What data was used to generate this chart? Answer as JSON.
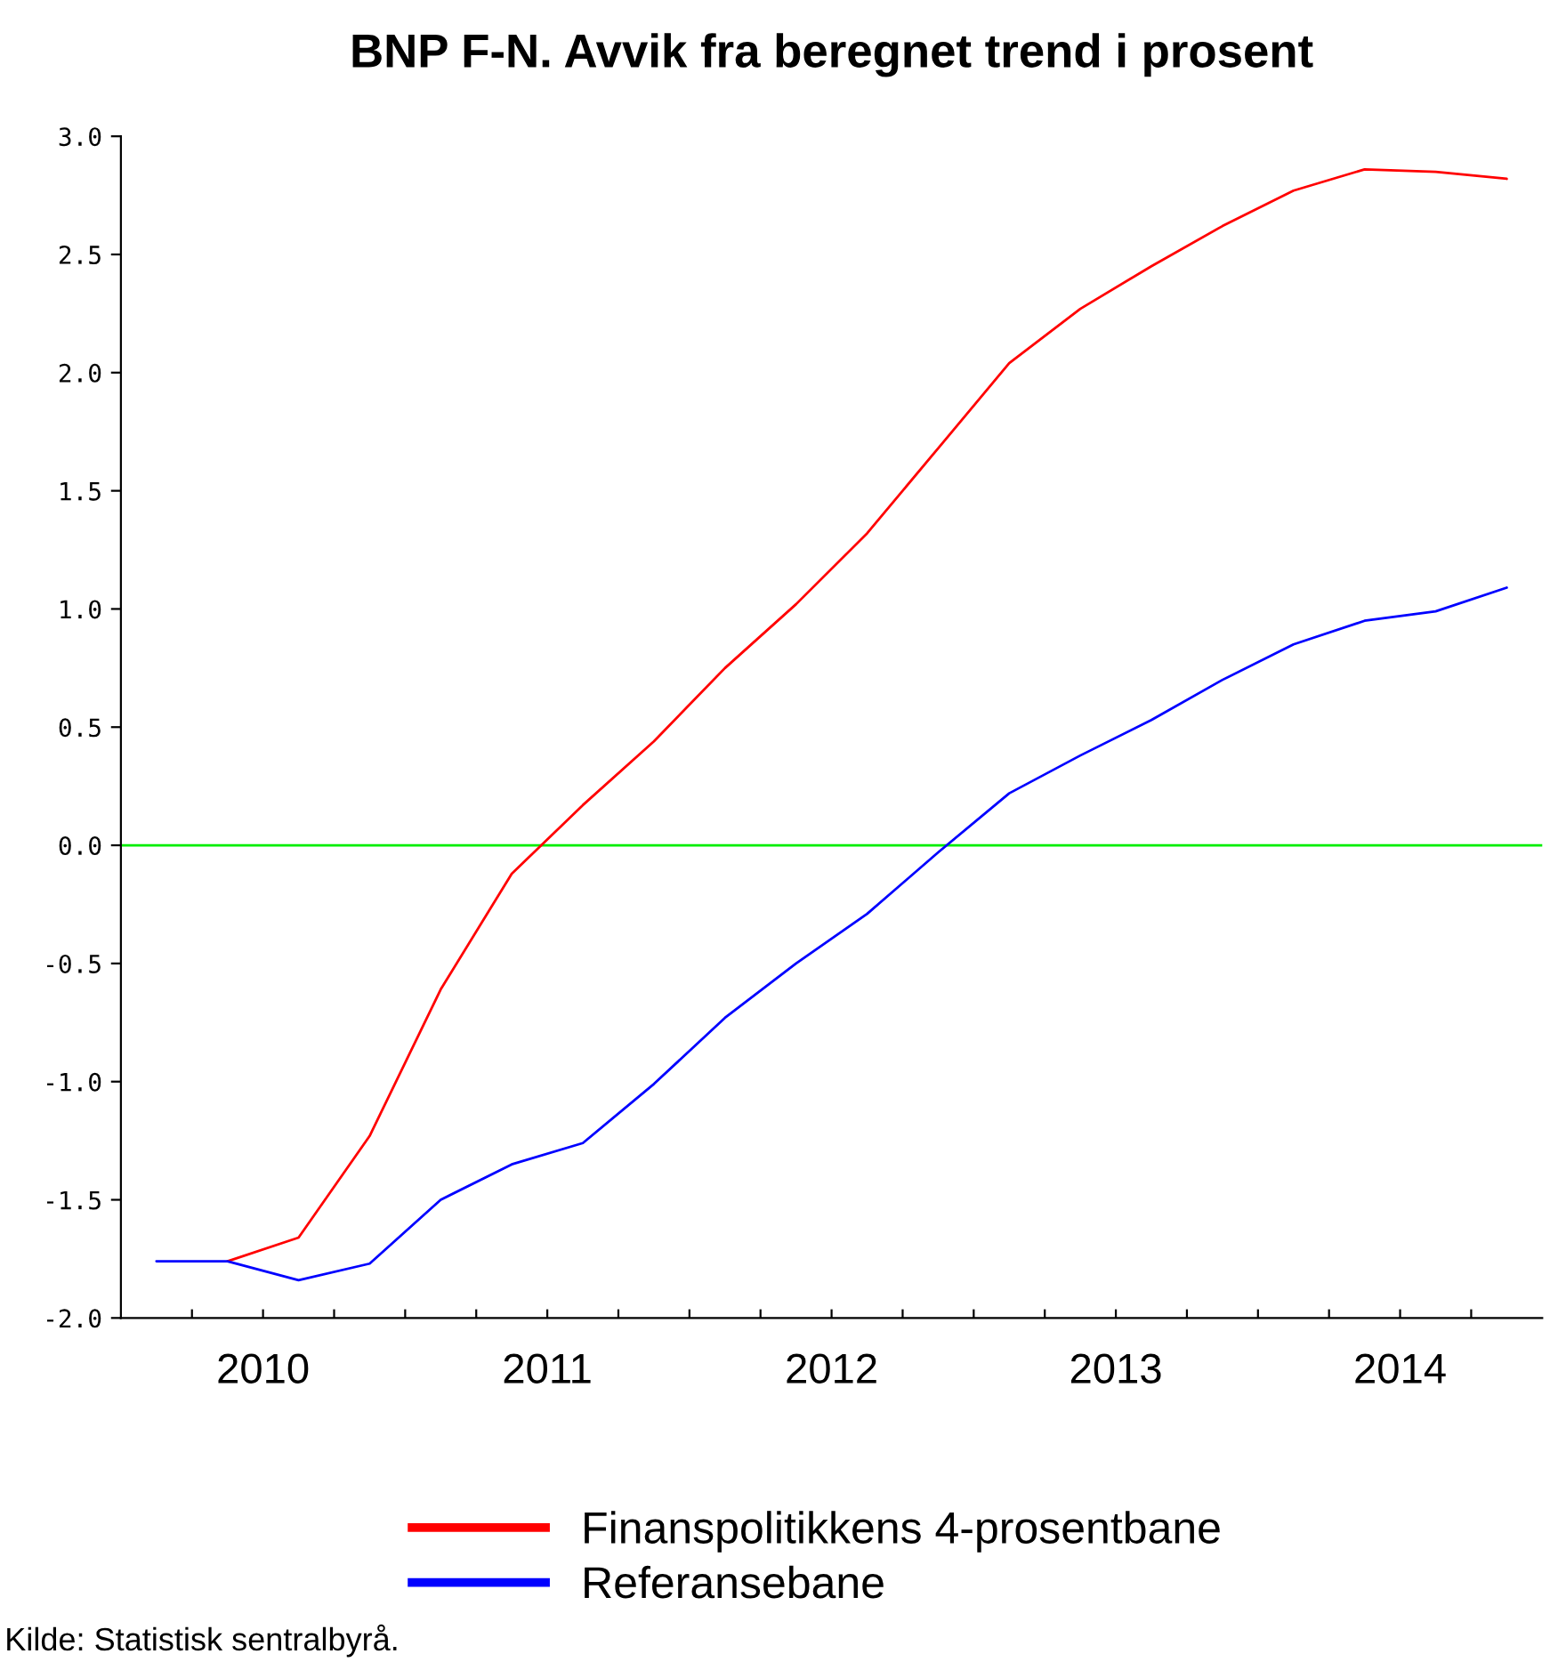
{
  "chart_data": {
    "type": "line",
    "title": "BNP F-N. Avvik fra beregnet trend i prosent",
    "x": [
      2010.125,
      2010.375,
      2010.625,
      2010.875,
      2011.125,
      2011.375,
      2011.625,
      2011.875,
      2012.125,
      2012.375,
      2012.625,
      2012.875,
      2013.125,
      2013.375,
      2013.625,
      2013.875,
      2014.125,
      2014.375,
      2014.625,
      2014.875
    ],
    "series": [
      {
        "name": "Finanspolitikkens 4-prosentbane",
        "color": "#ff0000",
        "values": [
          null,
          -1.76,
          -1.66,
          -1.23,
          -0.61,
          -0.12,
          0.17,
          0.44,
          0.75,
          1.02,
          1.32,
          1.68,
          2.04,
          2.27,
          2.45,
          2.62,
          2.77,
          2.86,
          2.85,
          2.82
        ]
      },
      {
        "name": "Referansebane",
        "color": "#0000ff",
        "values": [
          -1.76,
          -1.76,
          -1.84,
          -1.77,
          -1.5,
          -1.35,
          -1.26,
          -1.01,
          -0.73,
          -0.5,
          -0.29,
          -0.03,
          0.22,
          0.38,
          0.53,
          0.7,
          0.85,
          0.95,
          0.99,
          1.09
        ]
      }
    ],
    "xlim": [
      2010,
      2015
    ],
    "xticks": [
      {
        "value": 2010.25,
        "label": null
      },
      {
        "value": 2010.5,
        "label": "2010"
      },
      {
        "value": 2010.75,
        "label": null
      },
      {
        "value": 2011,
        "label": null
      },
      {
        "value": 2011.25,
        "label": null
      },
      {
        "value": 2011.5,
        "label": "2011"
      },
      {
        "value": 2011.75,
        "label": null
      },
      {
        "value": 2012,
        "label": null
      },
      {
        "value": 2012.25,
        "label": null
      },
      {
        "value": 2012.5,
        "label": "2012"
      },
      {
        "value": 2012.75,
        "label": null
      },
      {
        "value": 2013,
        "label": null
      },
      {
        "value": 2013.25,
        "label": null
      },
      {
        "value": 2013.5,
        "label": "2013"
      },
      {
        "value": 2013.75,
        "label": null
      },
      {
        "value": 2014,
        "label": null
      },
      {
        "value": 2014.25,
        "label": null
      },
      {
        "value": 2014.5,
        "label": "2014"
      },
      {
        "value": 2014.75,
        "label": null
      }
    ],
    "ylim": [
      -2.0,
      3.0
    ],
    "yticks": [
      {
        "value": -2.0,
        "label": "-2.0"
      },
      {
        "value": -1.5,
        "label": "-1.5"
      },
      {
        "value": -1.0,
        "label": "-1.0"
      },
      {
        "value": -0.5,
        "label": "-0.5"
      },
      {
        "value": 0.0,
        "label": "0.0"
      },
      {
        "value": 0.5,
        "label": "0.5"
      },
      {
        "value": 1.0,
        "label": "1.0"
      },
      {
        "value": 1.5,
        "label": "1.5"
      },
      {
        "value": 2.0,
        "label": "2.0"
      },
      {
        "value": 2.5,
        "label": "2.5"
      },
      {
        "value": 3.0,
        "label": "3.0"
      }
    ],
    "ref_lines": [
      {
        "axis": "y",
        "value": 0,
        "color": "#00ee00"
      }
    ],
    "grid": false,
    "legend": "bottom",
    "marker": "none",
    "line_style": "solid",
    "annotations": [
      "Kilde: Statistisk sentralbyrå."
    ]
  }
}
